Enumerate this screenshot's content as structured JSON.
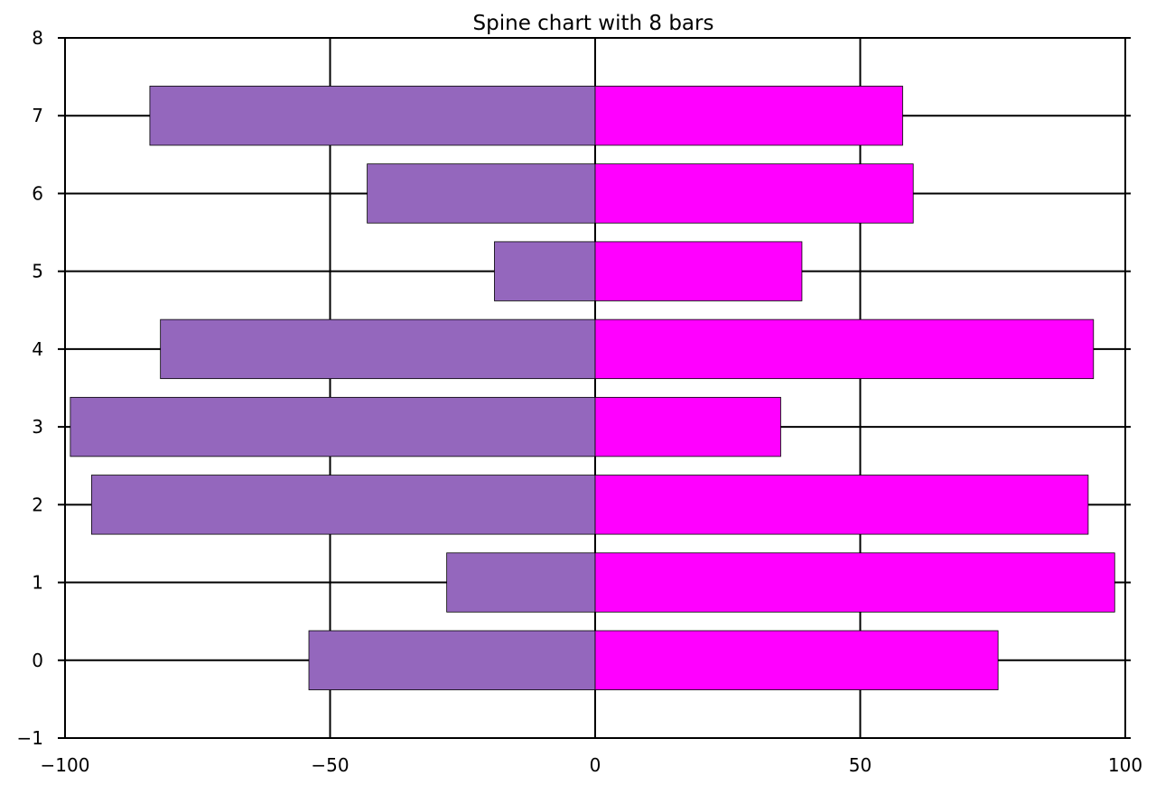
{
  "chart_data": {
    "type": "bar",
    "orientation": "horizontal",
    "title": "Spine chart with 8 bars",
    "xlabel": "",
    "ylabel": "",
    "categories": [
      0,
      1,
      2,
      3,
      4,
      5,
      6,
      7
    ],
    "series": [
      {
        "color": "#9467bd",
        "values": [
          -54,
          -28,
          -95,
          -99,
          -82,
          -19,
          -43,
          -84
        ]
      },
      {
        "color": "#ff00ff",
        "values": [
          76,
          98,
          93,
          35,
          94,
          39,
          60,
          58
        ]
      }
    ],
    "xlim": [
      -100,
      100
    ],
    "ylim": [
      -1,
      8
    ],
    "xticks": [
      -100,
      -50,
      0,
      50,
      100
    ],
    "xtick_labels": [
      "−100",
      "−50",
      "0",
      "50",
      "100"
    ],
    "yticks": [
      -1,
      0,
      1,
      2,
      3,
      4,
      5,
      6,
      7,
      8
    ],
    "ytick_labels": [
      "−1",
      "0",
      "1",
      "2",
      "3",
      "4",
      "5",
      "6",
      "7",
      "8"
    ],
    "grid": true,
    "legend": "none"
  }
}
